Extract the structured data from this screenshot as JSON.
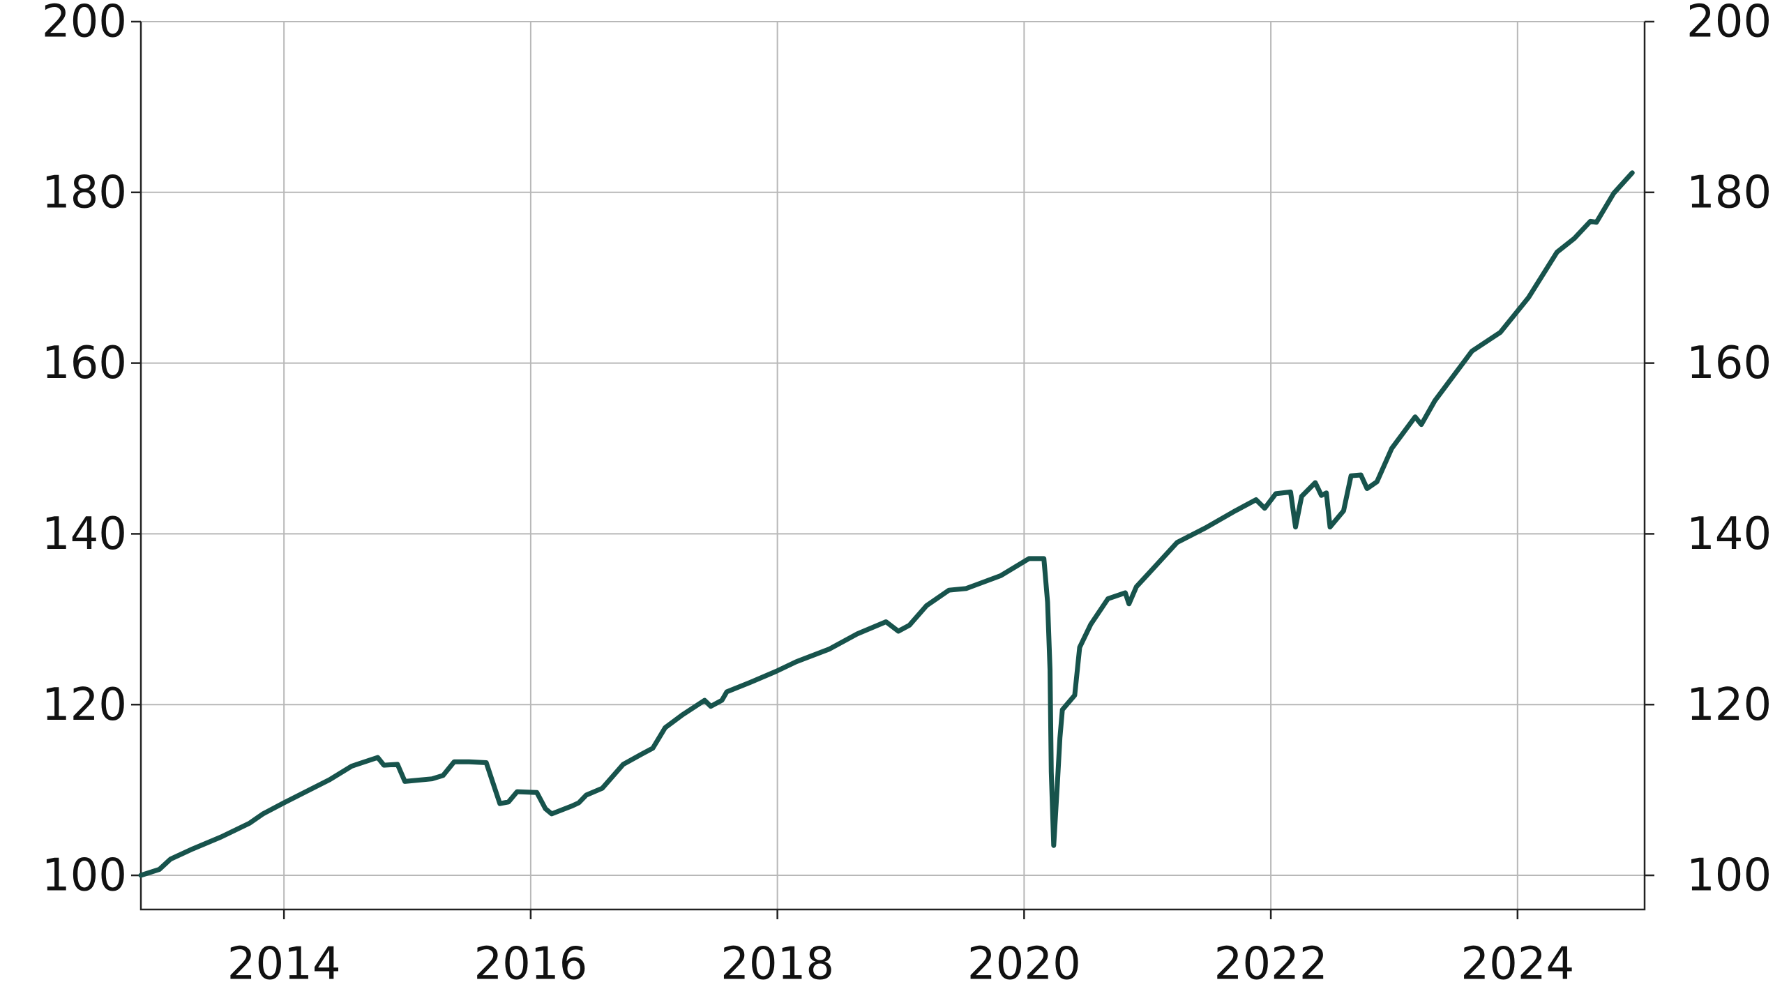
{
  "chart_data": {
    "type": "line",
    "x": [
      2012.84,
      2012.99,
      2013.08,
      2013.26,
      2013.49,
      2013.72,
      2013.83,
      2014.0,
      2014.37,
      2014.55,
      2014.76,
      2014.81,
      2014.92,
      2014.98,
      2015.2,
      2015.29,
      2015.38,
      2015.5,
      2015.64,
      2015.69,
      2015.75,
      2015.82,
      2015.89,
      2016.05,
      2016.12,
      2016.17,
      2016.33,
      2016.39,
      2016.45,
      2016.58,
      2016.75,
      2016.9,
      2016.99,
      2017.09,
      2017.23,
      2017.41,
      2017.46,
      2017.55,
      2017.59,
      2017.78,
      2017.99,
      2018.15,
      2018.42,
      2018.65,
      2018.88,
      2018.98,
      2019.07,
      2019.21,
      2019.39,
      2019.53,
      2019.81,
      2020.04,
      2020.16,
      2020.19,
      2020.21,
      2020.22,
      2020.24,
      2020.27,
      2020.29,
      2020.31,
      2020.41,
      2020.45,
      2020.54,
      2020.68,
      2020.82,
      2020.85,
      2020.91,
      2021.05,
      2021.24,
      2021.47,
      2021.7,
      2021.88,
      2021.95,
      2022.04,
      2022.16,
      2022.2,
      2022.25,
      2022.36,
      2022.41,
      2022.45,
      2022.48,
      2022.59,
      2022.65,
      2022.73,
      2022.78,
      2022.86,
      2022.98,
      2023.17,
      2023.22,
      2023.33,
      2023.63,
      2023.86,
      2024.09,
      2024.32,
      2024.46,
      2024.59,
      2024.64,
      2024.78,
      2024.93
    ],
    "series": [
      {
        "color": "#17534c",
        "values": [
          100.0,
          100.7,
          101.9,
          103.1,
          104.5,
          106.1,
          107.2,
          108.5,
          111.2,
          112.8,
          113.8,
          112.9,
          113.0,
          111.0,
          111.3,
          111.7,
          113.3,
          113.3,
          113.2,
          111.0,
          108.4,
          108.6,
          109.8,
          109.7,
          107.8,
          107.2,
          108.1,
          108.5,
          109.4,
          110.2,
          113.0,
          114.2,
          114.9,
          117.3,
          118.8,
          120.5,
          119.8,
          120.5,
          121.5,
          122.6,
          123.9,
          125.0,
          126.5,
          128.3,
          129.7,
          128.6,
          129.3,
          131.6,
          133.4,
          133.6,
          135.1,
          137.1,
          137.1,
          132.0,
          124.1,
          112.1,
          103.5,
          110.8,
          116.1,
          119.4,
          121.1,
          126.7,
          129.4,
          132.4,
          133.1,
          131.8,
          133.8,
          136.0,
          139.0,
          140.7,
          142.6,
          144.0,
          143.0,
          144.7,
          144.9,
          140.8,
          144.4,
          146.0,
          144.5,
          144.8,
          140.8,
          142.7,
          146.8,
          146.9,
          145.3,
          146.1,
          150.0,
          153.7,
          152.8,
          155.6,
          161.4,
          163.6,
          167.7,
          173.0,
          174.6,
          176.6,
          176.5,
          179.9,
          182.3
        ]
      }
    ],
    "xlim": [
      2012.84,
      2025.03
    ],
    "xticks": [
      2014,
      2016,
      2018,
      2020,
      2022,
      2024
    ],
    "ylim": [
      96,
      200
    ],
    "yticks": [
      100,
      120,
      140,
      160,
      180,
      200
    ],
    "grid": true
  }
}
